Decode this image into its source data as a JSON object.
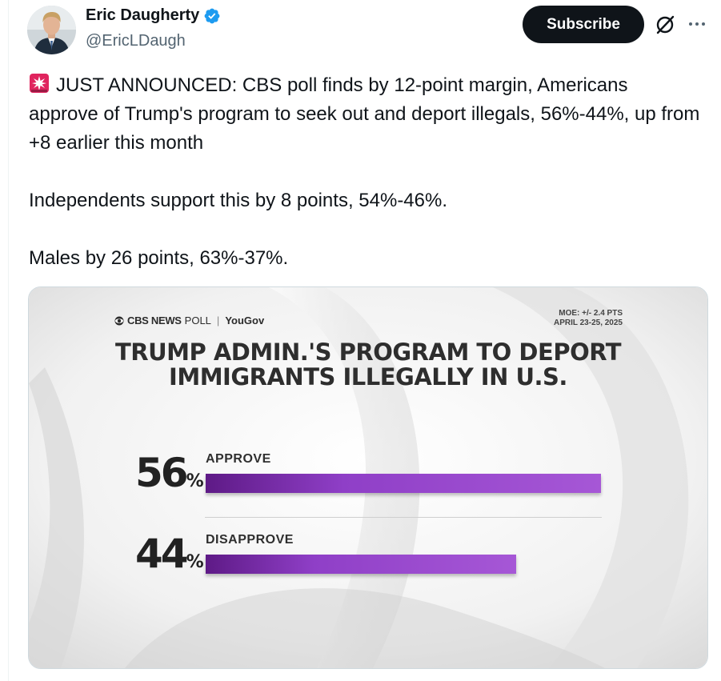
{
  "author": {
    "name": "Eric Daugherty",
    "handle": "@EricLDaugh",
    "verified": true
  },
  "actions": {
    "subscribe_label": "Subscribe",
    "grok_icon": "grok-slash-circle-icon",
    "more_icon": "ellipsis-icon"
  },
  "tweet": {
    "emoji": "police-car-light",
    "line1": "JUST ANNOUNCED: CBS poll finds by 12-point margin, Americans approve of Trump's program to seek out and deport illegals, 56%-44%, up from +8 earlier this month",
    "line2": "Independents support this by 8 points, 54%-46%.",
    "line3": "Males by 26 points, 63%-37%."
  },
  "media": {
    "brand_cbs": "CBS NEWS",
    "brand_poll": "POLL",
    "brand_yougov": "YouGov",
    "moe": "MOE: +/- 2.4 PTS",
    "dates": "APRIL 23-25, 2025",
    "title_line1": "TRUMP ADMIN.'S PROGRAM TO DEPORT",
    "title_line2": "IMMIGRANTS ILLEGALLY IN U.S.",
    "percent_sign": "%"
  },
  "chart_data": {
    "type": "bar",
    "title": "TRUMP ADMIN.'S PROGRAM TO DEPORT IMMIGRANTS ILLEGALLY IN U.S.",
    "categories": [
      "APPROVE",
      "DISAPPROVE"
    ],
    "values": [
      56,
      44
    ],
    "value_labels": [
      "56",
      "44"
    ],
    "unit": "%",
    "ylim": [
      0,
      56
    ],
    "bar_color": "#8f3fc7",
    "grid": false,
    "legend": "none"
  },
  "colors": {
    "verified": "#1d9bf0",
    "subscribe_bg": "#0f1419",
    "secondary_text": "#536471",
    "siren": "#e0245e"
  }
}
